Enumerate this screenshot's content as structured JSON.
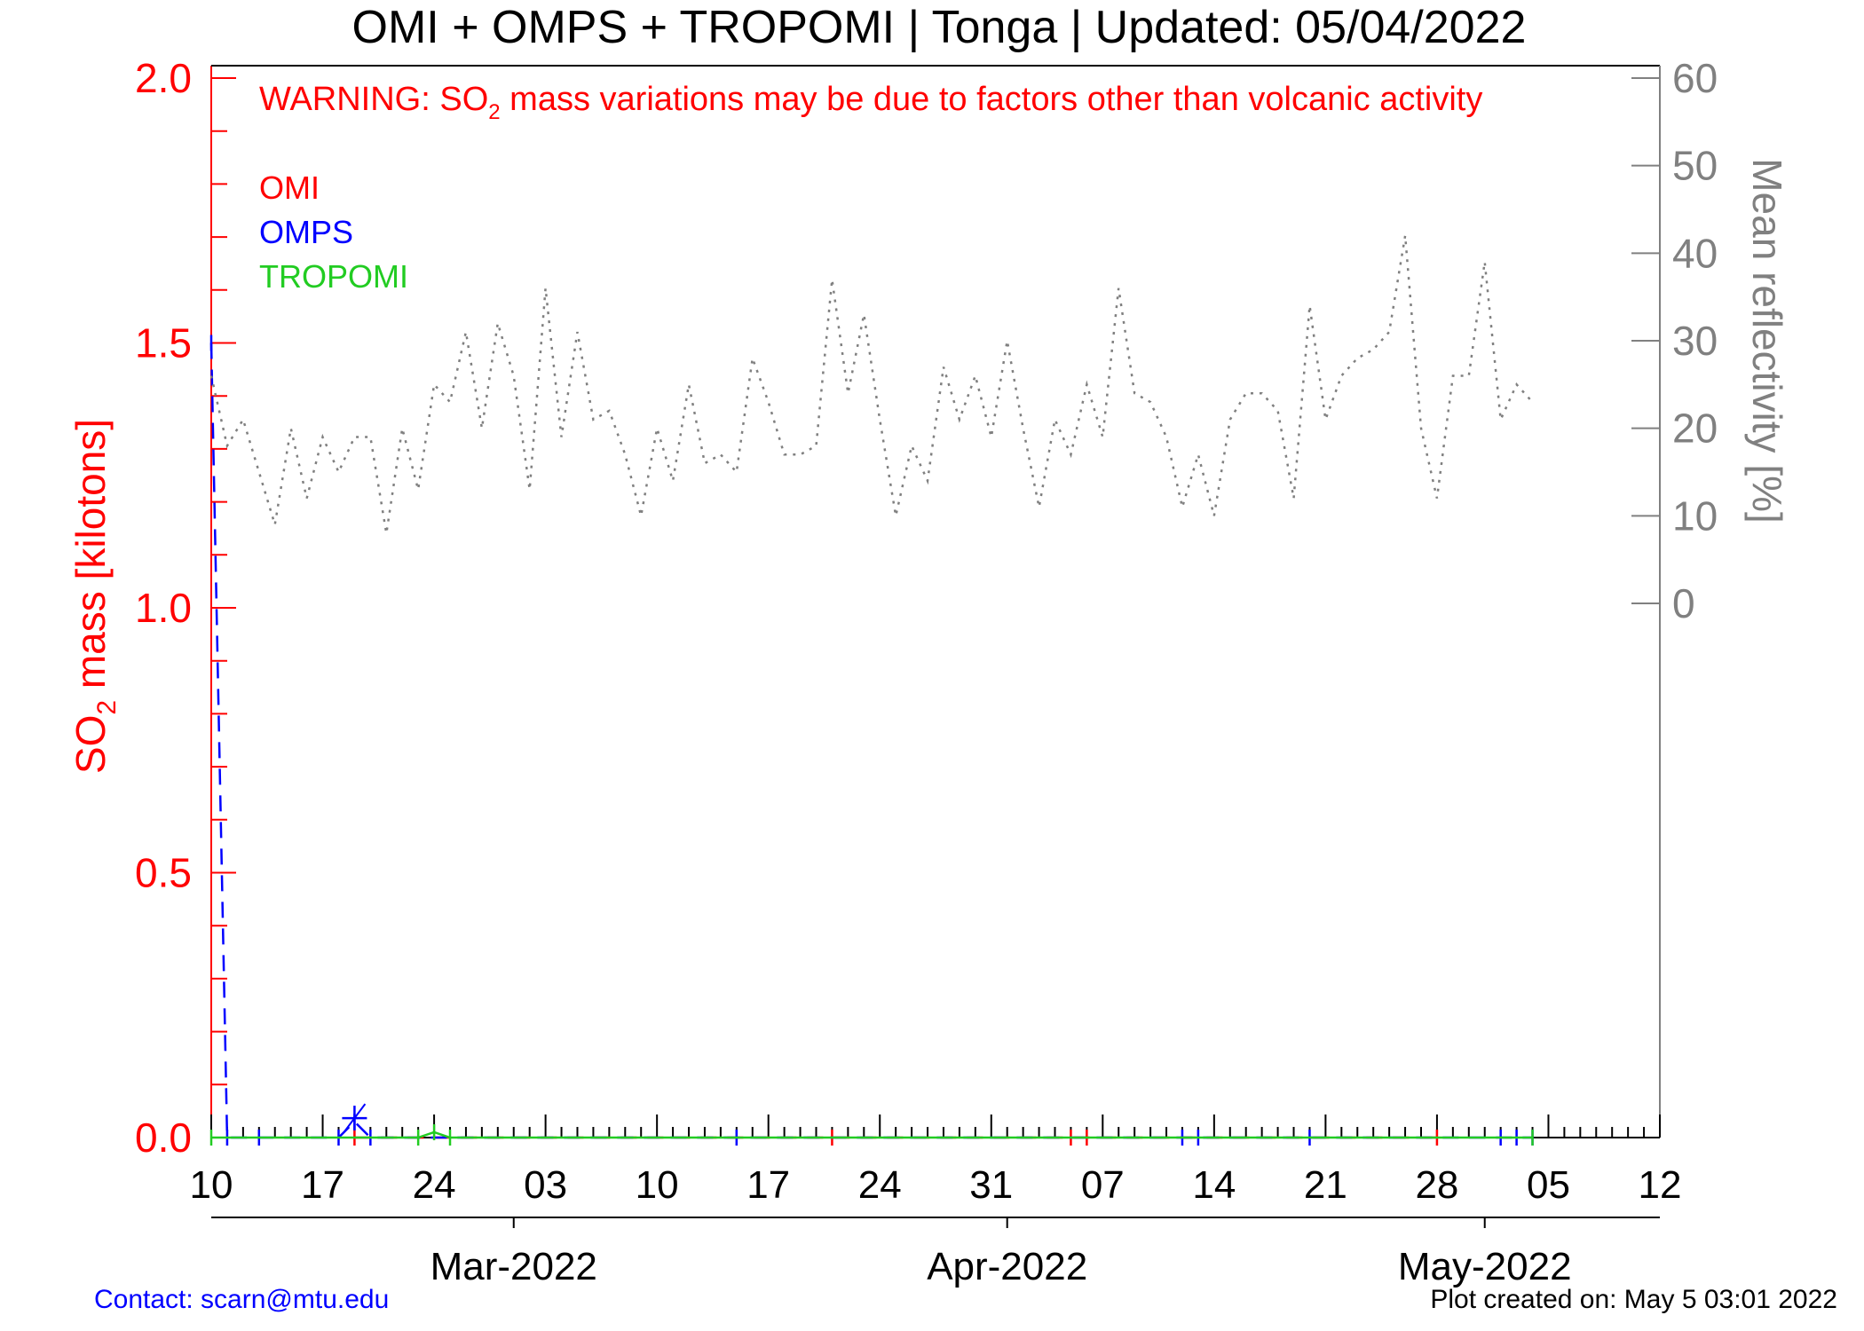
{
  "chart_data": {
    "type": "line",
    "title": "OMI + OMPS + TROPOMI | Tonga | Updated: 05/04/2022",
    "warning": {
      "pre": "WARNING: SO",
      "sub": "2",
      "post": " mass variations may be due to factors other than volcanic activity"
    },
    "ylabel": {
      "pre": "SO",
      "sub": "2",
      "post": " mass [kilotons]"
    },
    "y2label": "Mean reflectivity [%]",
    "x_range": [
      "2022-02-10",
      "2022-05-12"
    ],
    "ylim": [
      0,
      2
    ],
    "y2lim": [
      0,
      60
    ],
    "y_ticks": [
      "0.0",
      "0.5",
      "1.0",
      "1.5",
      "2.0"
    ],
    "y2_ticks": [
      "0",
      "10",
      "20",
      "30",
      "40",
      "50",
      "60"
    ],
    "x_tick_labels": [
      "10",
      "17",
      "24",
      "03",
      "10",
      "17",
      "24",
      "31",
      "07",
      "14",
      "21",
      "28",
      "05",
      "12"
    ],
    "month_labels": [
      {
        "label": "Mar-2022",
        "date": "2022-03-01"
      },
      {
        "label": "Apr-2022",
        "date": "2022-04-01"
      },
      {
        "label": "May-2022",
        "date": "2022-05-01"
      }
    ],
    "series": [
      {
        "name": "OMI",
        "color": "#ff0000",
        "axis": "left",
        "style": "dashed",
        "points": [
          [
            "2022-02-19",
            0.0
          ],
          [
            "2022-03-21",
            0.0
          ],
          [
            "2022-04-05",
            0.0
          ],
          [
            "2022-04-06",
            0.0
          ],
          [
            "2022-04-28",
            0.0
          ]
        ]
      },
      {
        "name": "OMPS",
        "color": "#0000ff",
        "axis": "left",
        "style": "dashed",
        "points": [
          [
            "2022-02-10",
            1.5
          ],
          [
            "2022-02-11",
            0.0
          ],
          [
            "2022-02-13",
            0.0
          ],
          [
            "2022-02-18",
            0.0
          ],
          [
            "2022-02-19",
            0.03
          ],
          [
            "2022-02-20",
            0.0
          ],
          [
            "2022-03-15",
            0.0
          ],
          [
            "2022-04-12",
            0.0
          ],
          [
            "2022-04-13",
            0.0
          ],
          [
            "2022-04-20",
            0.0
          ],
          [
            "2022-05-02",
            0.0
          ],
          [
            "2022-05-03",
            0.0
          ],
          [
            "2022-05-04",
            0.0
          ]
        ]
      },
      {
        "name": "TROPOMI",
        "color": "#22cc22",
        "axis": "left",
        "style": "solid",
        "points": [
          [
            "2022-02-10",
            0.0
          ],
          [
            "2022-02-23",
            0.0
          ],
          [
            "2022-02-24",
            0.01
          ],
          [
            "2022-02-25",
            0.0
          ],
          [
            "2022-05-04",
            0.0
          ]
        ]
      },
      {
        "name": "Mean reflectivity",
        "color": "#808080",
        "axis": "right",
        "style": "dotted",
        "points": [
          [
            "2022-02-10",
            26
          ],
          [
            "2022-02-11",
            18
          ],
          [
            "2022-02-12",
            21
          ],
          [
            "2022-02-13",
            15
          ],
          [
            "2022-02-14",
            9
          ],
          [
            "2022-02-15",
            20
          ],
          [
            "2022-02-16",
            12
          ],
          [
            "2022-02-17",
            19
          ],
          [
            "2022-02-18",
            15
          ],
          [
            "2022-02-19",
            19
          ],
          [
            "2022-02-20",
            19
          ],
          [
            "2022-02-21",
            8
          ],
          [
            "2022-02-22",
            20
          ],
          [
            "2022-02-23",
            13
          ],
          [
            "2022-02-24",
            25
          ],
          [
            "2022-02-25",
            23
          ],
          [
            "2022-02-26",
            31
          ],
          [
            "2022-02-27",
            20
          ],
          [
            "2022-02-28",
            32
          ],
          [
            "2022-03-01",
            26
          ],
          [
            "2022-03-02",
            13
          ],
          [
            "2022-03-03",
            36
          ],
          [
            "2022-03-04",
            19
          ],
          [
            "2022-03-05",
            31
          ],
          [
            "2022-03-06",
            21
          ],
          [
            "2022-03-07",
            22
          ],
          [
            "2022-03-08",
            17
          ],
          [
            "2022-03-09",
            10
          ],
          [
            "2022-03-10",
            20
          ],
          [
            "2022-03-11",
            14
          ],
          [
            "2022-03-12",
            25
          ],
          [
            "2022-03-13",
            16
          ],
          [
            "2022-03-14",
            17
          ],
          [
            "2022-03-15",
            15
          ],
          [
            "2022-03-16",
            28
          ],
          [
            "2022-03-17",
            23
          ],
          [
            "2022-03-18",
            17
          ],
          [
            "2022-03-19",
            17
          ],
          [
            "2022-03-20",
            18
          ],
          [
            "2022-03-21",
            37
          ],
          [
            "2022-03-22",
            24
          ],
          [
            "2022-03-23",
            33
          ],
          [
            "2022-03-24",
            21
          ],
          [
            "2022-03-25",
            10
          ],
          [
            "2022-03-26",
            18
          ],
          [
            "2022-03-27",
            14
          ],
          [
            "2022-03-28",
            27
          ],
          [
            "2022-03-29",
            21
          ],
          [
            "2022-03-30",
            26
          ],
          [
            "2022-03-31",
            19
          ],
          [
            "2022-04-01",
            30
          ],
          [
            "2022-04-02",
            20
          ],
          [
            "2022-04-03",
            11
          ],
          [
            "2022-04-04",
            21
          ],
          [
            "2022-04-05",
            17
          ],
          [
            "2022-04-06",
            25
          ],
          [
            "2022-04-07",
            19
          ],
          [
            "2022-04-08",
            36
          ],
          [
            "2022-04-09",
            24
          ],
          [
            "2022-04-10",
            23
          ],
          [
            "2022-04-11",
            19
          ],
          [
            "2022-04-12",
            11
          ],
          [
            "2022-04-13",
            17
          ],
          [
            "2022-04-14",
            10
          ],
          [
            "2022-04-15",
            21
          ],
          [
            "2022-04-16",
            24
          ],
          [
            "2022-04-17",
            24
          ],
          [
            "2022-04-18",
            22
          ],
          [
            "2022-04-19",
            12
          ],
          [
            "2022-04-20",
            34
          ],
          [
            "2022-04-21",
            21
          ],
          [
            "2022-04-22",
            26
          ],
          [
            "2022-04-23",
            28
          ],
          [
            "2022-04-24",
            29
          ],
          [
            "2022-04-25",
            31
          ],
          [
            "2022-04-26",
            42
          ],
          [
            "2022-04-27",
            20
          ],
          [
            "2022-04-28",
            12
          ],
          [
            "2022-04-29",
            26
          ],
          [
            "2022-04-30",
            26
          ],
          [
            "2022-05-01",
            39
          ],
          [
            "2022-05-02",
            21
          ],
          [
            "2022-05-03",
            25
          ],
          [
            "2022-05-04",
            23
          ]
        ]
      }
    ],
    "legend": {
      "placement": "top-left",
      "entries": [
        {
          "label": "OMI",
          "color": "#ff0000"
        },
        {
          "label": "OMPS",
          "color": "#0000ff"
        },
        {
          "label": "TROPOMI",
          "color": "#22cc22"
        }
      ]
    },
    "axis_colors": {
      "left": "#ff0000",
      "right": "#808080",
      "bottom": "#000000"
    },
    "grid": false
  },
  "footer": {
    "contact": "Contact: scarn@mtu.edu",
    "created": "Plot created on: May  5 03:01 2022"
  }
}
